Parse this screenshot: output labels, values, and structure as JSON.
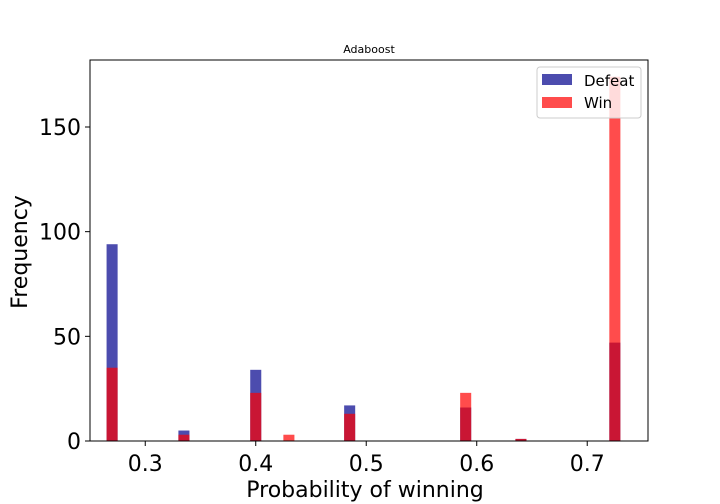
{
  "chart_data": {
    "type": "bar",
    "subtype": "overlapping-histogram",
    "title": "Adaboost",
    "xlabel": "Probability of winning",
    "ylabel": "Frequency",
    "xlim": [
      0.25,
      0.755
    ],
    "ylim": [
      0,
      182
    ],
    "xticks": [
      0.3,
      0.4,
      0.5,
      0.6,
      0.7
    ],
    "xtick_labels": [
      "0.3",
      "0.4",
      "0.5",
      "0.6",
      "0.7"
    ],
    "yticks": [
      0,
      50,
      100,
      150
    ],
    "ytick_labels": [
      "0",
      "50",
      "100",
      "150"
    ],
    "bin_width": 0.01,
    "grid": false,
    "legend_position": "top-right",
    "series": [
      {
        "name": "Defeat",
        "color": "#00008b",
        "opacity": 0.7,
        "x": [
          0.27,
          0.335,
          0.4,
          0.485,
          0.59,
          0.64,
          0.725
        ],
        "values": [
          94,
          5,
          34,
          17,
          16,
          1,
          47
        ]
      },
      {
        "name": "Win",
        "color": "#ff0000",
        "opacity": 0.7,
        "x": [
          0.27,
          0.335,
          0.4,
          0.43,
          0.485,
          0.59,
          0.64,
          0.725
        ],
        "values": [
          35,
          3,
          23,
          3,
          13,
          23,
          1,
          174
        ]
      }
    ]
  }
}
